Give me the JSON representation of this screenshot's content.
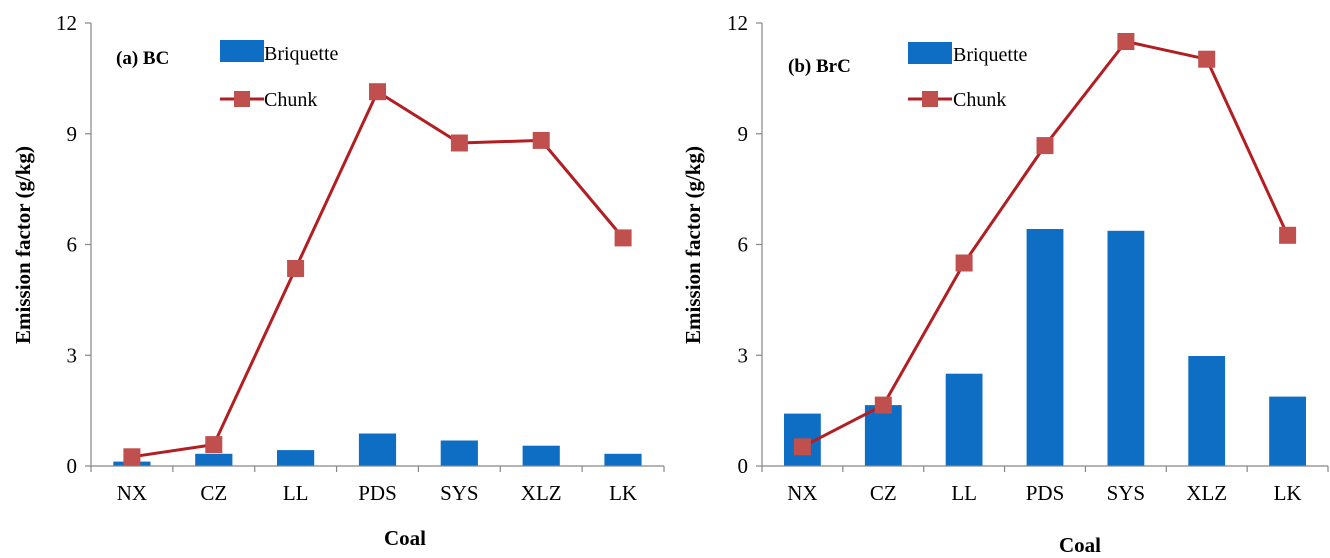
{
  "chart_data": [
    {
      "type": "bar",
      "panel_label": "(a) BC",
      "categories": [
        "NX",
        "CZ",
        "LL",
        "PDS",
        "SYS",
        "XLZ",
        "LK"
      ],
      "series": [
        {
          "name": "Briquette",
          "type": "bar",
          "values": [
            0.12,
            0.33,
            0.43,
            0.88,
            0.69,
            0.55,
            0.33
          ]
        },
        {
          "name": "Chunk",
          "type": "line",
          "values": [
            0.25,
            0.58,
            5.35,
            10.14,
            8.75,
            8.82,
            6.18
          ]
        }
      ],
      "xlabel": "Coal",
      "ylabel": "Emission factor (g/kg)",
      "ylim": [
        0,
        12
      ],
      "yticks": [
        "0",
        "3",
        "6",
        "9",
        "12"
      ],
      "legend_position": "top-left",
      "grid": false
    },
    {
      "type": "bar",
      "panel_label": "(b) BrC",
      "categories": [
        "NX",
        "CZ",
        "LL",
        "PDS",
        "SYS",
        "XLZ",
        "LK"
      ],
      "series": [
        {
          "name": "Briquette",
          "type": "bar",
          "values": [
            1.42,
            1.65,
            2.5,
            6.42,
            6.37,
            2.98,
            1.88
          ]
        },
        {
          "name": "Chunk",
          "type": "line",
          "values": [
            0.52,
            1.65,
            5.5,
            8.68,
            11.5,
            11.02,
            6.25
          ]
        }
      ],
      "xlabel": "Coal",
      "ylabel": "Emission factor (g/kg)",
      "ylim": [
        0,
        12
      ],
      "yticks": [
        "0",
        "3",
        "6",
        "9",
        "12"
      ],
      "legend_position": "top-left",
      "grid": false
    }
  ],
  "colors": {
    "briquette": "#0E6EC4",
    "chunk_line": "#B21E22",
    "chunk_marker": "#C0504D",
    "axis": "#868686"
  }
}
